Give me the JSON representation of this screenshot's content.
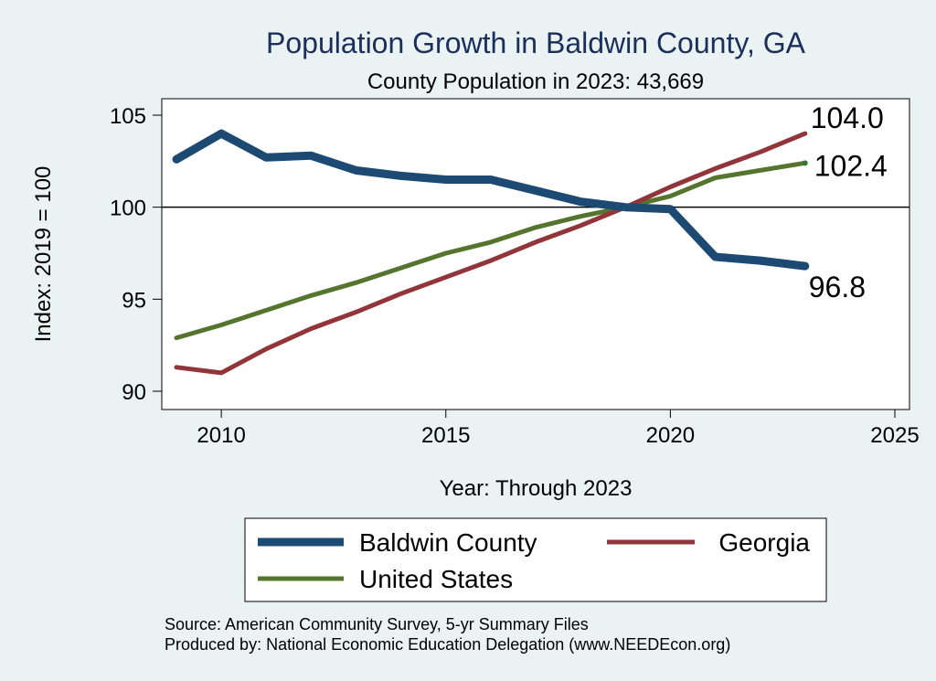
{
  "title": "Population Growth in Baldwin County, GA",
  "subtitle": "County Population in 2023: 43,669",
  "source": {
    "line1": "Source: American Community Survey, 5-yr Summary Files",
    "line2": "Produced by: National Economic Education Delegation (www.NEEDEcon.org)"
  },
  "chart_data": {
    "type": "line",
    "xlabel": "Year: Through 2023",
    "ylabel": "Index: 2019 = 100",
    "xlim": [
      2009,
      2025
    ],
    "ylim": [
      89,
      105
    ],
    "xticks": [
      2010,
      2015,
      2020,
      2025
    ],
    "yticks": [
      90,
      95,
      100,
      105
    ],
    "reference_line": 100,
    "grid": false,
    "legend_position": "bottom",
    "x": [
      2009,
      2010,
      2011,
      2012,
      2013,
      2014,
      2015,
      2016,
      2017,
      2018,
      2019,
      2020,
      2021,
      2022,
      2023
    ],
    "series": [
      {
        "name": "Baldwin  County",
        "color": "#1d4a72",
        "values": [
          102.6,
          104.0,
          102.7,
          102.8,
          102.0,
          101.7,
          101.5,
          101.5,
          100.9,
          100.3,
          100.0,
          99.9,
          97.3,
          97.1,
          96.8
        ],
        "end_label": "96.8"
      },
      {
        "name": "Georgia",
        "color": "#91353b",
        "values": [
          91.3,
          91.0,
          92.3,
          93.4,
          94.3,
          95.3,
          96.2,
          97.1,
          98.1,
          99.0,
          100.0,
          101.1,
          102.1,
          103.0,
          104.0
        ],
        "end_label": "104.0"
      },
      {
        "name": "United States",
        "color": "#55752f",
        "values": [
          92.9,
          93.6,
          94.4,
          95.2,
          95.9,
          96.7,
          97.5,
          98.1,
          98.9,
          99.5,
          100.0,
          100.6,
          101.6,
          102.0,
          102.4
        ],
        "end_label": "102.4"
      }
    ]
  }
}
